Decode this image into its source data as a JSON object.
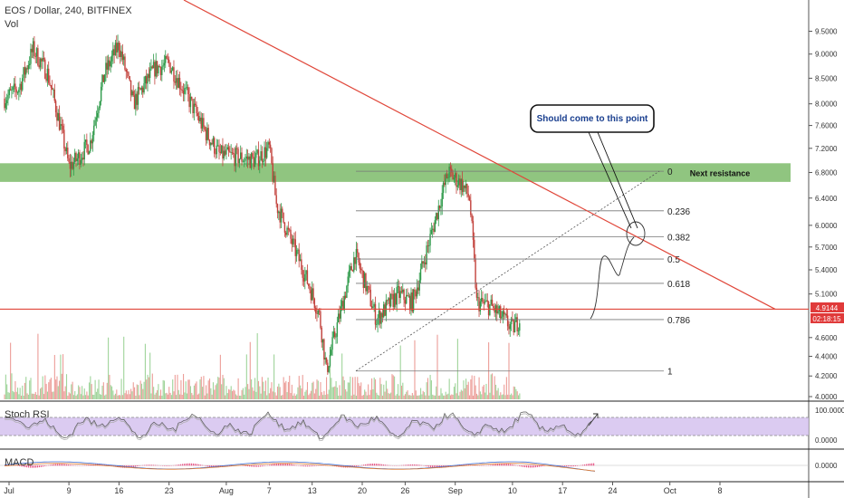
{
  "header": {
    "symbol": "EOS / Dollar, 240, BITFINEX",
    "vol_label": "Vol"
  },
  "panes": {
    "stoch_label": "Stoch RSI",
    "macd_label": "MACD"
  },
  "colors": {
    "up": "#2e9a4a",
    "down": "#c2413b",
    "vol_up": "#9fd49a",
    "vol_down": "#ec9d98",
    "resistance_zone": "#7dbb6a",
    "trendline": "#e0473a",
    "support_line": "#e0473a",
    "fib": "#777777",
    "stoch_band": "#d5c2ef",
    "price_tag": "#e03a3a",
    "callout_text": "#1a3f8f"
  },
  "annotations": {
    "callout": "Should come to this point",
    "resistance_label": "Next resistance",
    "fib_levels": [
      "0",
      "0.236",
      "0.382",
      "0.5",
      "0.618",
      "0.786",
      "1"
    ]
  },
  "price_tags": {
    "current": "4.9144",
    "countdown": "02:18:15"
  },
  "chart_data": {
    "type": "candlestick",
    "title": "EOS / Dollar, 240, BITFINEX",
    "x_ticks": [
      "Jul",
      "9",
      "16",
      "23",
      "Aug",
      "7",
      "13",
      "20",
      "26",
      "Sep",
      "10",
      "17",
      "24",
      "Oct",
      "8"
    ],
    "y_ticks": [
      "9.5000",
      "9.0000",
      "8.5000",
      "8.0000",
      "7.6000",
      "7.2000",
      "6.8000",
      "6.4000",
      "6.0000",
      "5.7000",
      "5.4000",
      "5.1000",
      "4.6000",
      "4.4000",
      "4.2000",
      "4.0000"
    ],
    "y_range": [
      4.0,
      9.8
    ],
    "y_scale": "log",
    "last_price": 4.9144,
    "price_path": [
      [
        0,
        8.1
      ],
      [
        2,
        8.3
      ],
      [
        4,
        9.1
      ],
      [
        6,
        8.6
      ],
      [
        9,
        6.9
      ],
      [
        10,
        7.0
      ],
      [
        12,
        7.3
      ],
      [
        14,
        8.6
      ],
      [
        16,
        9.2
      ],
      [
        18,
        8.0
      ],
      [
        21,
        8.7
      ],
      [
        23,
        8.8
      ],
      [
        28,
        7.5
      ],
      [
        30,
        7.1
      ],
      [
        35,
        7.0
      ],
      [
        37,
        7.2
      ],
      [
        38,
        6.3
      ],
      [
        40,
        5.8
      ],
      [
        43,
        5.1
      ],
      [
        44,
        4.85
      ],
      [
        45,
        4.25
      ],
      [
        47,
        4.9
      ],
      [
        49,
        5.6
      ],
      [
        52,
        4.8
      ],
      [
        55,
        5.1
      ],
      [
        57,
        5.0
      ],
      [
        58,
        5.3
      ],
      [
        60,
        6.0
      ],
      [
        62,
        6.8
      ],
      [
        64,
        6.6
      ],
      [
        65,
        6.4
      ],
      [
        66,
        5.0
      ],
      [
        68,
        4.95
      ],
      [
        71,
        4.7
      ],
      [
        72,
        4.8
      ]
    ],
    "stoch_rsi_levels": [
      "100.0000",
      "0.0000"
    ],
    "macd_levels": [
      "0.0000"
    ],
    "resistance_zone": [
      6.65,
      6.95
    ],
    "support_level": 4.92,
    "fibonacci": {
      "high": 6.82,
      "low": 4.25,
      "levels": [
        {
          "ratio": "0",
          "price": 6.82
        },
        {
          "ratio": "0.236",
          "price": 6.21
        },
        {
          "ratio": "0.382",
          "price": 5.84
        },
        {
          "ratio": "0.5",
          "price": 5.54
        },
        {
          "ratio": "0.618",
          "price": 5.23
        },
        {
          "ratio": "0.786",
          "price": 4.8
        },
        {
          "ratio": "1",
          "price": 4.25
        }
      ]
    },
    "trendline": [
      [
        20,
        9.9
      ],
      [
        94,
        4.92
      ]
    ]
  }
}
